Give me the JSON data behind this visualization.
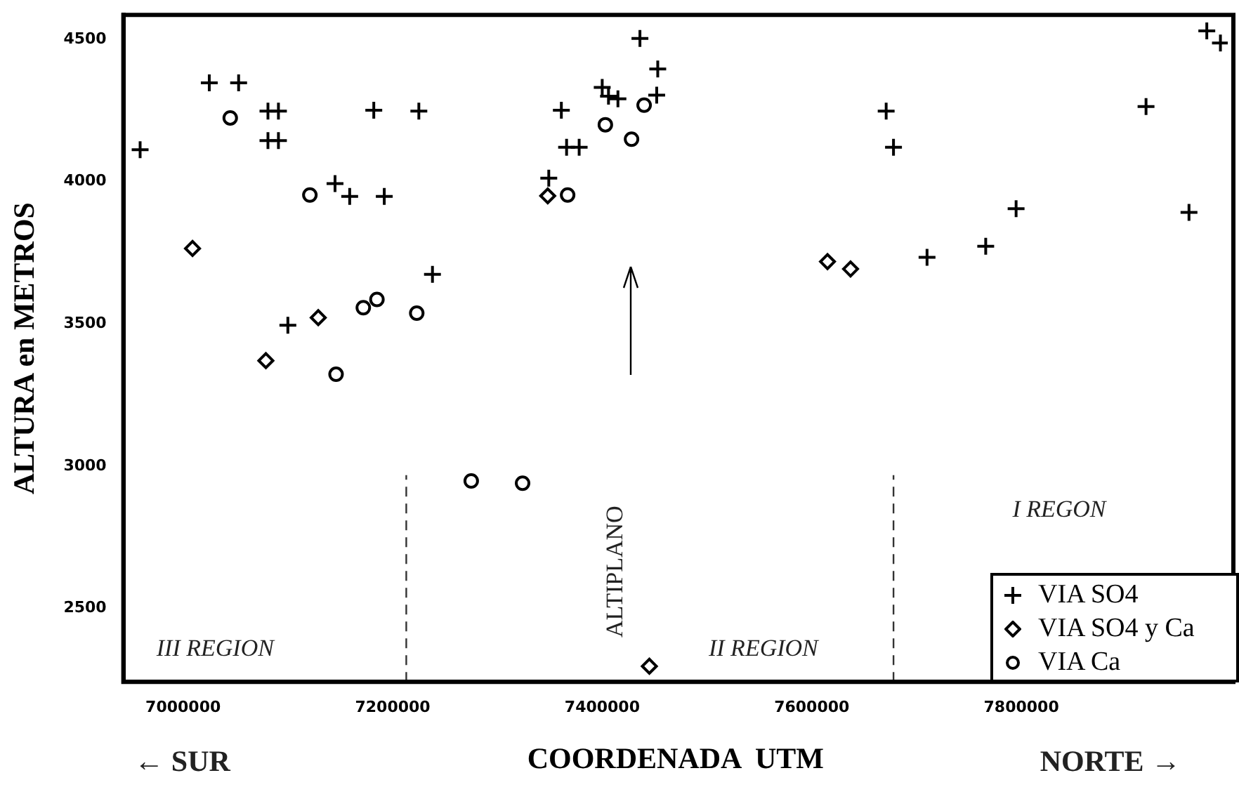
{
  "chart_data": {
    "type": "scatter",
    "xlabel": "COORDENADA  UTM",
    "ylabel": "ALTURA en METROS",
    "xlim": [
      6943000,
      7997000
    ],
    "ylim": [
      2242,
      4586
    ],
    "xticks": [
      7000000,
      7200000,
      7400000,
      7600000,
      7800000
    ],
    "yticks": [
      2500,
      3000,
      3500,
      4000,
      4500
    ],
    "grid": false,
    "legend": "bottom right",
    "series": [
      {
        "name": "VIA SO4",
        "color": "#000000",
        "marker": "cross",
        "x": [
          6959000,
          7025000,
          7053000,
          7081000,
          7091000,
          7081000,
          7091000,
          7182000,
          7225000,
          7145000,
          7159000,
          7192000,
          7238000,
          7100000,
          7361000,
          7436000,
          7453000,
          7452000,
          7400000,
          7406000,
          7415000,
          7366000,
          7378000,
          7349000,
          7671000,
          7678000,
          7710000,
          7766000,
          7795000,
          7919000,
          7960000,
          7977000,
          7990000
        ],
        "values": [
          4112,
          4347,
          4347,
          4248,
          4248,
          4144,
          4144,
          4251,
          4248,
          3993,
          3948,
          3948,
          3674,
          3495,
          4251,
          4503,
          4396,
          4304,
          4331,
          4300,
          4291,
          4121,
          4121,
          4012,
          4248,
          4121,
          3734,
          3773,
          3905,
          4264,
          3892,
          4530,
          4487
        ]
      },
      {
        "name": "VIA SO4 y Ca",
        "color": "#000000",
        "marker": "diamond",
        "x": [
          7009000,
          7129000,
          7079000,
          7348000,
          7445000,
          7615000,
          7637000
        ],
        "values": [
          3765,
          3522,
          3371,
          3950,
          2297,
          3719,
          3693
        ]
      },
      {
        "name": "VIA Ca",
        "color": "#000000",
        "marker": "circle",
        "x": [
          7045000,
          7121000,
          7172000,
          7185000,
          7223000,
          7146000,
          7367000,
          7403000,
          7428000,
          7440000,
          7275000,
          7324000
        ],
        "values": [
          4224,
          3953,
          3557,
          3586,
          3538,
          3323,
          3953,
          4200,
          4149,
          4269,
          2948,
          2940
        ]
      }
    ],
    "ref_lines": [
      {
        "axis": "x",
        "value": 7213000,
        "line_style": "dashed"
      },
      {
        "axis": "x",
        "value": 7678000,
        "line_style": "dashed"
      }
    ],
    "annotations": [
      "III REGION",
      "II REGION",
      "I REGON",
      "ALTIPLANO",
      "← SUR",
      "NORTE →"
    ]
  }
}
